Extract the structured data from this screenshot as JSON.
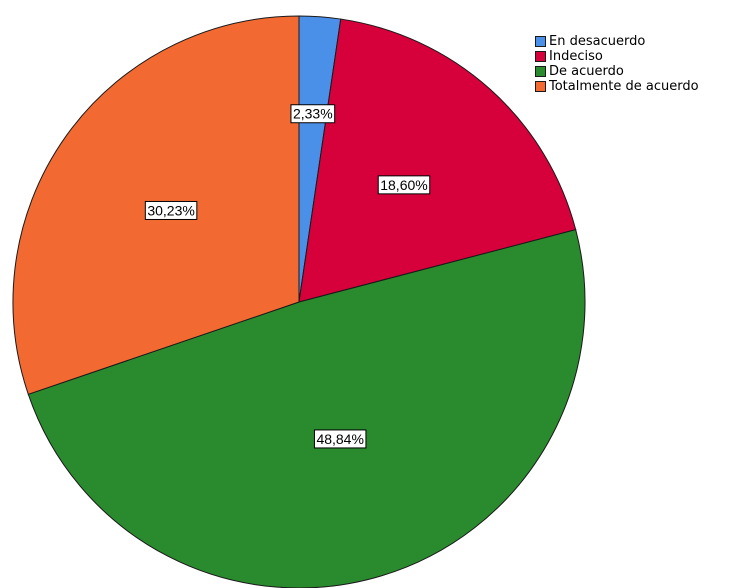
{
  "chart_data": {
    "type": "pie",
    "title": "",
    "categories": [
      "En desacuerdo",
      "Indeciso",
      "De acuerdo",
      "Totalmente de acuerdo"
    ],
    "values": [
      2.33,
      18.6,
      48.84,
      30.23
    ],
    "labels": [
      "2,33%",
      "18,60%",
      "48,84%",
      "30,23%"
    ],
    "colors": [
      "#4a8fe8",
      "#d6003a",
      "#2a8a2e",
      "#f26a32"
    ],
    "start_angle": "12 o'clock",
    "direction": "clockwise",
    "legend": "top-right"
  },
  "legend": {
    "items": [
      {
        "label": "En desacuerdo",
        "color": "#4a8fe8"
      },
      {
        "label": "Indeciso",
        "color": "#d6003a"
      },
      {
        "label": "De acuerdo",
        "color": "#2a8a2e"
      },
      {
        "label": "Totalmente de acuerdo",
        "color": "#f26a32"
      }
    ]
  }
}
